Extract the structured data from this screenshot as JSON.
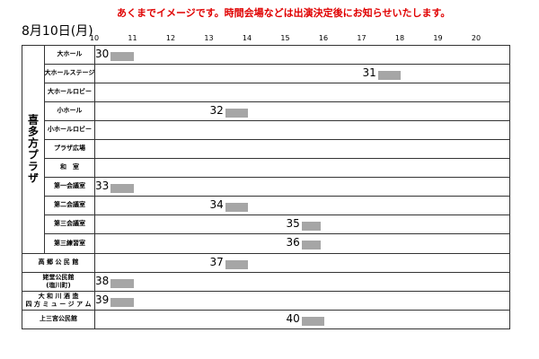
{
  "notice": "あくまでイメージです。時間会場などは出演決定後にお知らせいたします。",
  "date": "8月10日(月)",
  "hours": [
    "10",
    "11",
    "12",
    "13",
    "14",
    "15",
    "16",
    "17",
    "18",
    "19",
    "20"
  ],
  "group": "喜多方プラザ",
  "rows": [
    {
      "venue": "大ホール",
      "num": "30",
      "start": 10.0,
      "end": 11.0
    },
    {
      "venue": "大ホールステージ",
      "num": "31",
      "start": 17.0,
      "end": 18.0
    },
    {
      "venue": "大ホールロビー",
      "num": "",
      "start": null,
      "end": null
    },
    {
      "venue": "小ホール",
      "num": "32",
      "start": 13.0,
      "end": 14.0
    },
    {
      "venue": "小ホールロビー",
      "num": "",
      "start": null,
      "end": null
    },
    {
      "venue": "プラザ広場",
      "num": "",
      "start": null,
      "end": null
    },
    {
      "venue": "和　室",
      "num": "",
      "start": null,
      "end": null
    },
    {
      "venue": "第一会議室",
      "num": "33",
      "start": 10.0,
      "end": 11.0
    },
    {
      "venue": "第二会議室",
      "num": "34",
      "start": 13.0,
      "end": 14.0
    },
    {
      "venue": "第三会議室",
      "num": "35",
      "start": 15.0,
      "end": 15.9
    },
    {
      "venue": "第三練習室",
      "num": "36",
      "start": 15.0,
      "end": 15.9
    },
    {
      "venue": "高 郷 公 民 館",
      "num": "37",
      "start": 13.0,
      "end": 14.0
    },
    {
      "venue": "姥堂公民館",
      "venue2": "(塩川町)",
      "num": "38",
      "start": 10.0,
      "end": 11.0
    },
    {
      "venue": "大 和 川 酒 造",
      "venue2": "四 方 ミ ュ ー ジ ア ム",
      "num": "39",
      "start": 10.0,
      "end": 11.0
    },
    {
      "venue": "上三宮公民館",
      "num": "40",
      "start": 15.0,
      "end": 16.0
    }
  ]
}
